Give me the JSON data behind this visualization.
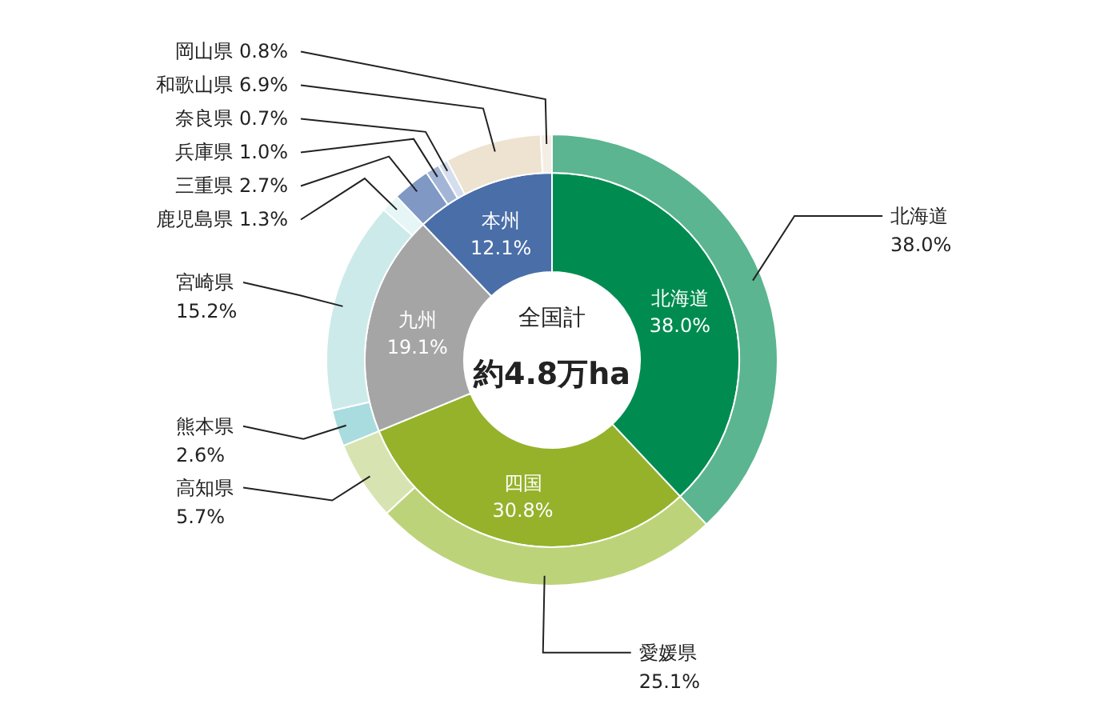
{
  "chart_data": [
    {
      "type": "donut",
      "categories": [
        "北海道",
        "四国",
        "九州",
        "本州"
      ],
      "values": [
        38.0,
        30.8,
        19.1,
        12.1
      ],
      "colors": [
        "#008c50",
        "#95b22a",
        "#a5a5a5",
        "#4a6ea8"
      ],
      "value_labels": [
        "38.0%",
        "30.8%",
        "19.1%",
        "12.1%"
      ],
      "annotations": [
        "全国計",
        "約4.8万ha"
      ]
    },
    {
      "type": "donut",
      "categories": [
        "北海道",
        "愛媛県",
        "高知県",
        "熊本県",
        "宮崎県",
        "鹿児島県",
        "三重県",
        "兵庫県",
        "奈良県",
        "和歌山県",
        "岡山県"
      ],
      "values": [
        38.0,
        25.1,
        5.7,
        2.6,
        15.2,
        1.3,
        2.7,
        1.0,
        0.7,
        6.9,
        0.8
      ],
      "colors": [
        "#5bb590",
        "#bdd37a",
        "#d7e4b1",
        "#a8dcdf",
        "#cdeaea",
        "#e6f5f5",
        "#7f98c4",
        "#a3b5d7",
        "#d5deee",
        "#ede3d0",
        "#f5eee4"
      ],
      "value_labels": [
        "38.0%",
        "25.1%",
        "5.7%",
        "2.6%",
        "15.2%",
        "1.3%",
        "2.7%",
        "1.0%",
        "0.7%",
        "6.9%",
        "0.8%"
      ]
    }
  ]
}
